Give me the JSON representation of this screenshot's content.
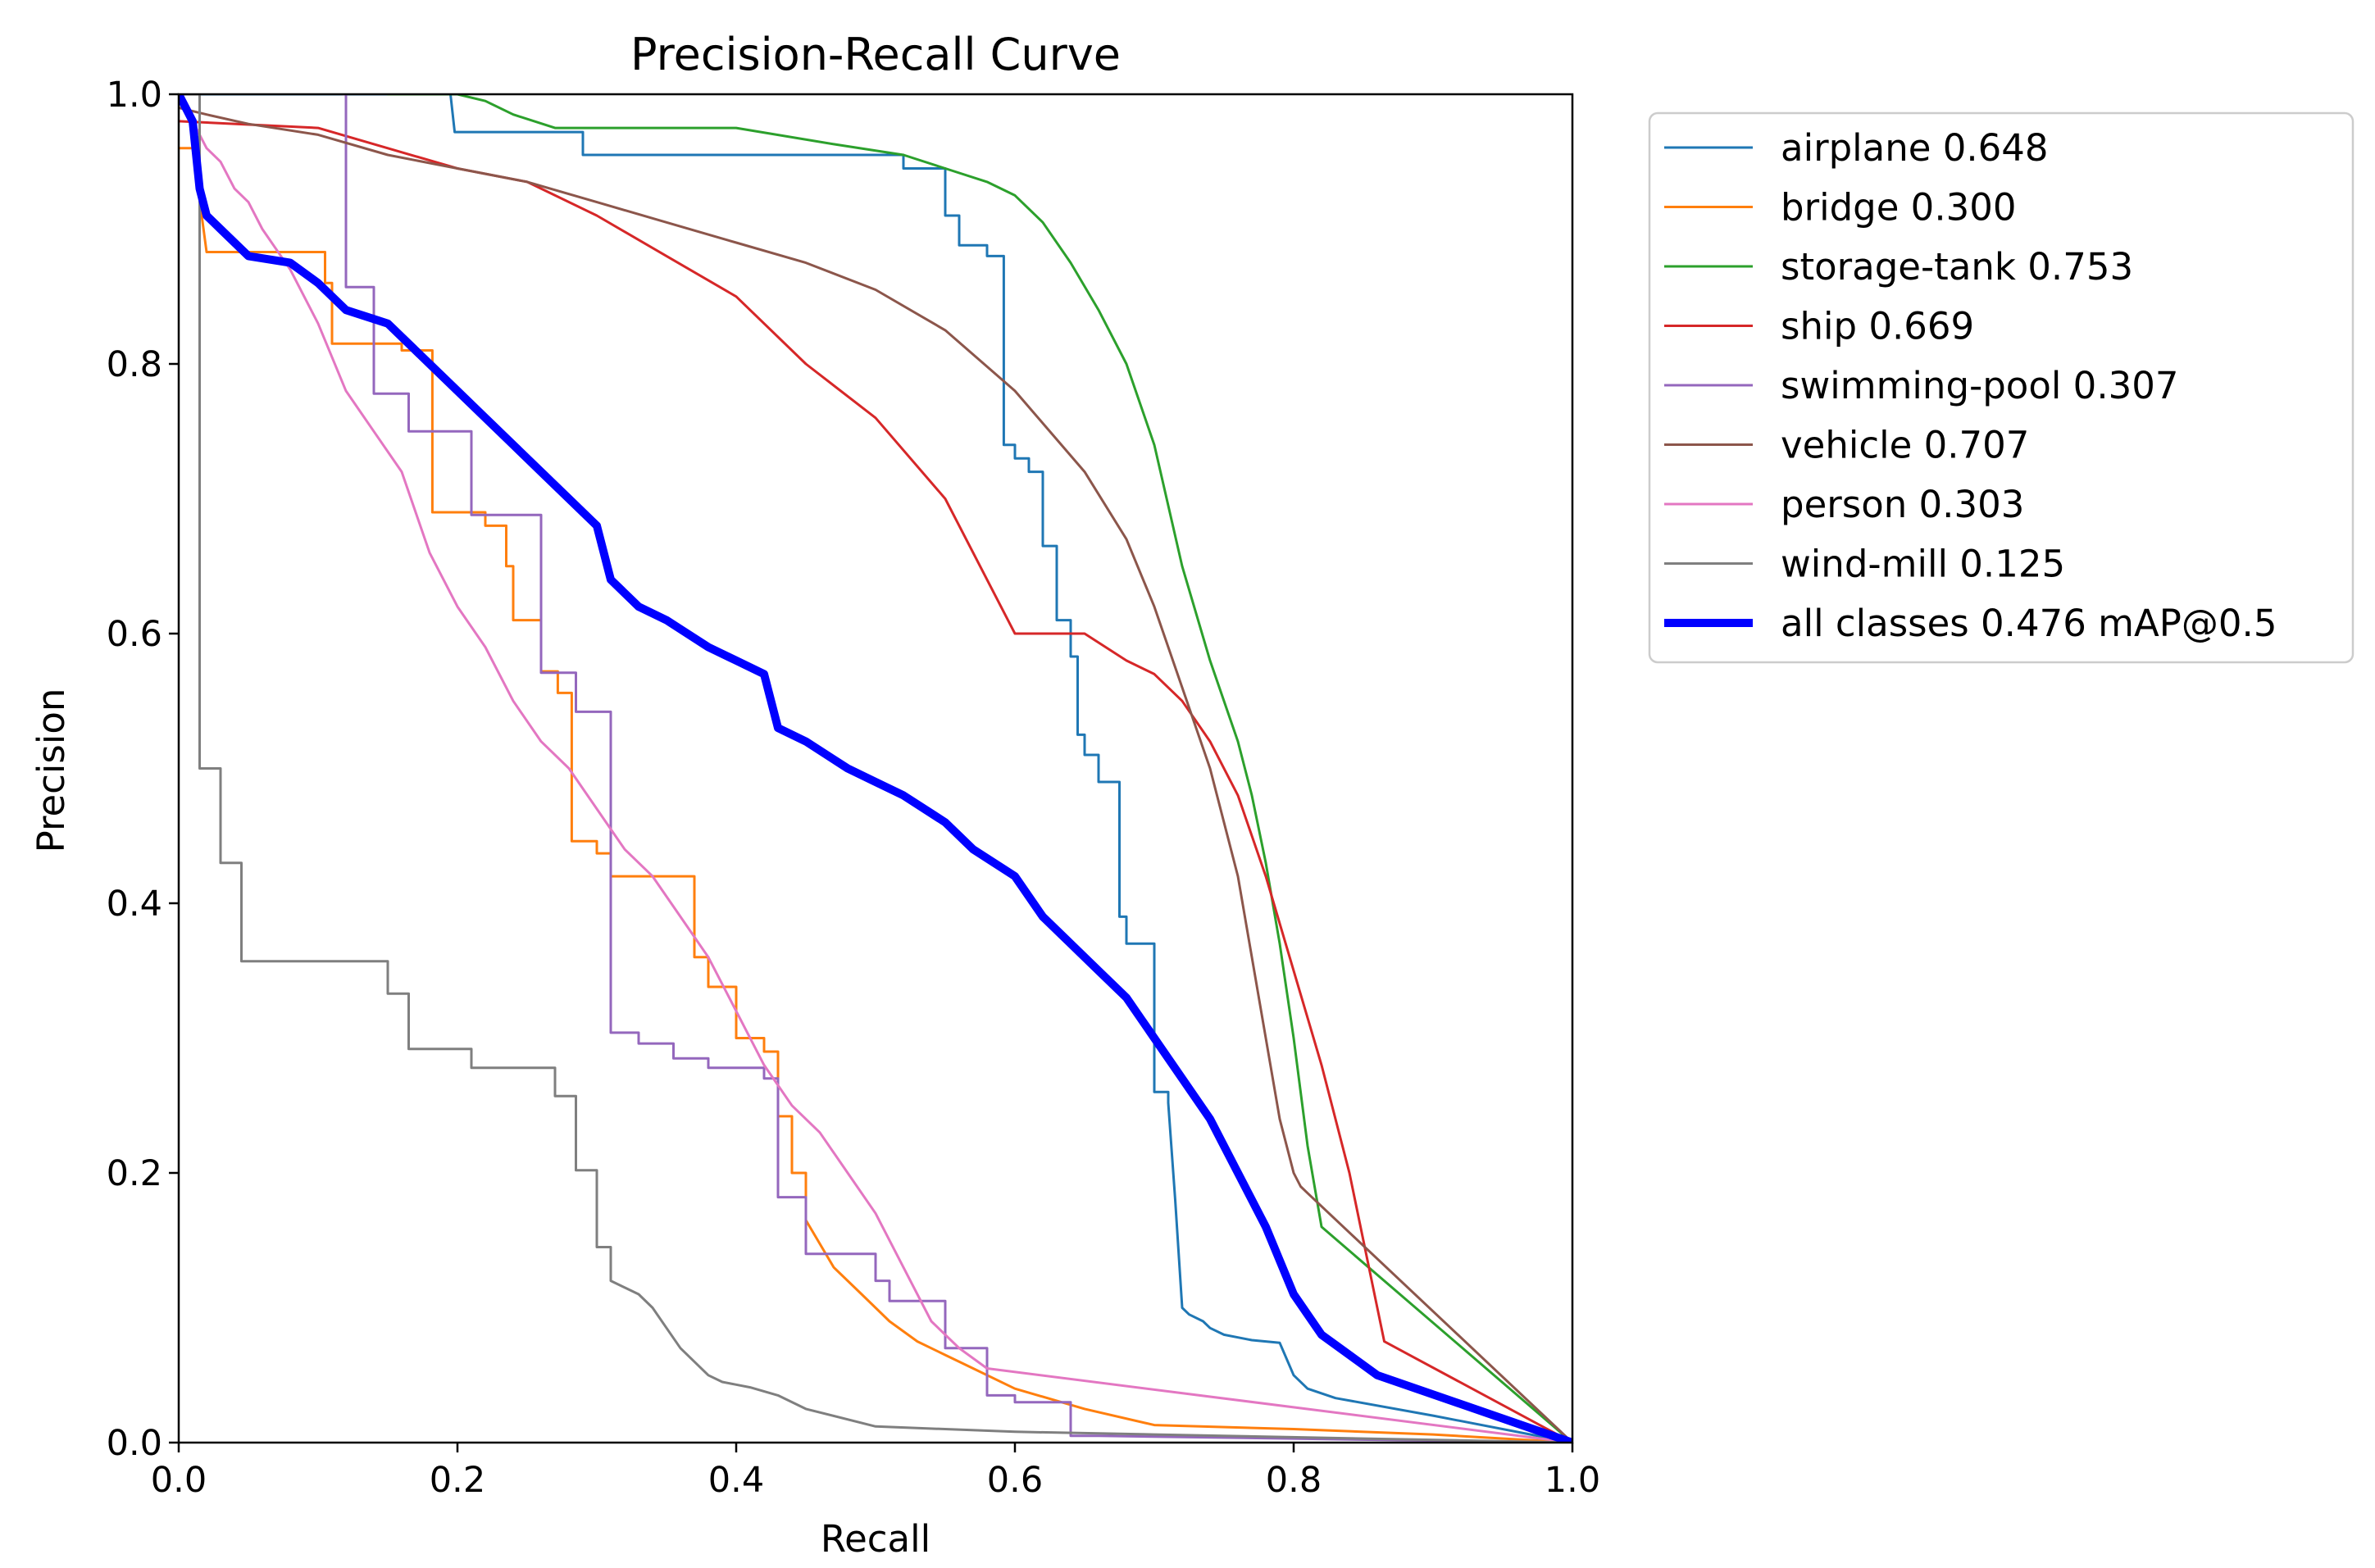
{
  "chart_data": {
    "type": "line",
    "title": "Precision-Recall Curve",
    "xlabel": "Recall",
    "ylabel": "Precision",
    "xlim": [
      0.0,
      1.0
    ],
    "ylim": [
      0.0,
      1.0
    ],
    "grid": false,
    "legend_position": "outside-upper-right",
    "x_ticks": [
      "0.0",
      "0.2",
      "0.4",
      "0.6",
      "0.8",
      "1.0"
    ],
    "y_ticks": [
      "0.0",
      "0.2",
      "0.4",
      "0.6",
      "0.8",
      "1.0"
    ],
    "series": [
      {
        "name": "airplane",
        "label": "airplane 0.648",
        "color": "#1f77b4",
        "width": 3,
        "x": [
          0.0,
          0.13,
          0.195,
          0.198,
          0.29,
          0.29,
          0.52,
          0.52,
          0.55,
          0.55,
          0.56,
          0.56,
          0.58,
          0.58,
          0.592,
          0.592,
          0.6,
          0.6,
          0.61,
          0.61,
          0.62,
          0.62,
          0.63,
          0.63,
          0.64,
          0.64,
          0.645,
          0.645,
          0.65,
          0.65,
          0.66,
          0.66,
          0.675,
          0.675,
          0.68,
          0.68,
          0.7,
          0.7,
          0.71,
          0.71,
          0.715,
          0.72,
          0.725,
          0.735,
          0.74,
          0.75,
          0.76,
          0.77,
          0.79,
          0.8,
          0.81,
          0.83,
          0.9,
          1.0
        ],
        "y": [
          1.0,
          1.0,
          1.0,
          0.972,
          0.972,
          0.955,
          0.955,
          0.945,
          0.945,
          0.91,
          0.91,
          0.888,
          0.888,
          0.88,
          0.88,
          0.74,
          0.74,
          0.73,
          0.73,
          0.72,
          0.72,
          0.665,
          0.665,
          0.61,
          0.61,
          0.583,
          0.583,
          0.525,
          0.525,
          0.51,
          0.51,
          0.49,
          0.49,
          0.39,
          0.39,
          0.37,
          0.37,
          0.26,
          0.26,
          0.252,
          0.18,
          0.1,
          0.095,
          0.09,
          0.085,
          0.08,
          0.078,
          0.076,
          0.074,
          0.05,
          0.04,
          0.033,
          0.02,
          0.0
        ]
      },
      {
        "name": "bridge",
        "label": "bridge 0.300",
        "color": "#ff7f0e",
        "width": 3,
        "x": [
          0.0,
          0.01,
          0.02,
          0.02,
          0.105,
          0.105,
          0.11,
          0.11,
          0.16,
          0.16,
          0.182,
          0.182,
          0.22,
          0.22,
          0.235,
          0.235,
          0.24,
          0.24,
          0.26,
          0.26,
          0.272,
          0.272,
          0.282,
          0.282,
          0.3,
          0.3,
          0.31,
          0.31,
          0.37,
          0.37,
          0.38,
          0.38,
          0.4,
          0.4,
          0.42,
          0.42,
          0.43,
          0.43,
          0.44,
          0.44,
          0.45,
          0.45,
          0.47,
          0.49,
          0.51,
          0.53,
          0.55,
          0.57,
          0.6,
          0.65,
          0.7,
          0.8,
          0.9,
          1.0
        ],
        "y": [
          0.96,
          0.96,
          0.883,
          0.883,
          0.883,
          0.86,
          0.86,
          0.815,
          0.815,
          0.81,
          0.81,
          0.69,
          0.69,
          0.68,
          0.68,
          0.65,
          0.65,
          0.61,
          0.61,
          0.572,
          0.572,
          0.556,
          0.556,
          0.446,
          0.446,
          0.437,
          0.437,
          0.42,
          0.42,
          0.36,
          0.36,
          0.338,
          0.338,
          0.3,
          0.3,
          0.29,
          0.29,
          0.242,
          0.242,
          0.2,
          0.2,
          0.165,
          0.13,
          0.11,
          0.09,
          0.075,
          0.065,
          0.055,
          0.04,
          0.025,
          0.013,
          0.01,
          0.006,
          0.0
        ]
      },
      {
        "name": "storage-tank",
        "label": "storage-tank 0.753",
        "color": "#2ca02c",
        "width": 3,
        "x": [
          0.15,
          0.2,
          0.22,
          0.24,
          0.27,
          0.3,
          0.4,
          0.47,
          0.52,
          0.55,
          0.58,
          0.6,
          0.62,
          0.64,
          0.66,
          0.68,
          0.7,
          0.72,
          0.74,
          0.76,
          0.77,
          0.78,
          0.79,
          0.8,
          0.805,
          0.81,
          0.815,
          0.82,
          0.82,
          1.0
        ],
        "y": [
          1.0,
          1.0,
          0.995,
          0.985,
          0.975,
          0.975,
          0.975,
          0.963,
          0.955,
          0.945,
          0.935,
          0.925,
          0.905,
          0.875,
          0.84,
          0.8,
          0.74,
          0.65,
          0.58,
          0.52,
          0.48,
          0.43,
          0.37,
          0.3,
          0.26,
          0.22,
          0.19,
          0.16,
          0.16,
          0.0
        ]
      },
      {
        "name": "ship",
        "label": "ship 0.669",
        "color": "#d62728",
        "width": 3,
        "x": [
          0.0,
          0.1,
          0.15,
          0.2,
          0.25,
          0.3,
          0.35,
          0.4,
          0.45,
          0.5,
          0.55,
          0.6,
          0.65,
          0.68,
          0.7,
          0.72,
          0.74,
          0.76,
          0.78,
          0.8,
          0.82,
          0.84,
          0.85,
          0.86,
          0.865,
          1.0
        ],
        "y": [
          0.98,
          0.975,
          0.96,
          0.945,
          0.935,
          0.91,
          0.88,
          0.85,
          0.8,
          0.76,
          0.7,
          0.6,
          0.6,
          0.58,
          0.57,
          0.55,
          0.52,
          0.48,
          0.42,
          0.35,
          0.28,
          0.2,
          0.15,
          0.1,
          0.075,
          0.0
        ]
      },
      {
        "name": "swimming-pool",
        "label": "swimming-pool 0.307",
        "color": "#9467bd",
        "width": 3,
        "x": [
          0.118,
          0.118,
          0.12,
          0.12,
          0.14,
          0.14,
          0.165,
          0.165,
          0.21,
          0.21,
          0.26,
          0.26,
          0.285,
          0.285,
          0.31,
          0.31,
          0.33,
          0.33,
          0.355,
          0.355,
          0.38,
          0.38,
          0.42,
          0.42,
          0.43,
          0.43,
          0.45,
          0.45,
          0.5,
          0.5,
          0.51,
          0.51,
          0.55,
          0.55,
          0.58,
          0.58,
          0.6,
          0.6,
          0.64,
          0.64,
          0.66,
          1.0
        ],
        "y": [
          1.0,
          1.0,
          1.0,
          0.857,
          0.857,
          0.778,
          0.778,
          0.75,
          0.75,
          0.688,
          0.688,
          0.571,
          0.571,
          0.542,
          0.542,
          0.304,
          0.304,
          0.296,
          0.296,
          0.285,
          0.285,
          0.278,
          0.278,
          0.27,
          0.27,
          0.182,
          0.182,
          0.14,
          0.14,
          0.12,
          0.12,
          0.105,
          0.105,
          0.07,
          0.07,
          0.035,
          0.035,
          0.03,
          0.03,
          0.005,
          0.005,
          0.0
        ]
      },
      {
        "name": "vehicle",
        "label": "vehicle 0.707",
        "color": "#8c564b",
        "width": 3,
        "x": [
          0.0,
          0.02,
          0.05,
          0.1,
          0.15,
          0.2,
          0.25,
          0.3,
          0.35,
          0.4,
          0.45,
          0.5,
          0.55,
          0.6,
          0.65,
          0.68,
          0.7,
          0.72,
          0.74,
          0.76,
          0.77,
          0.78,
          0.79,
          0.8,
          0.805,
          0.81,
          1.0
        ],
        "y": [
          0.99,
          0.985,
          0.978,
          0.97,
          0.955,
          0.945,
          0.935,
          0.92,
          0.905,
          0.89,
          0.875,
          0.855,
          0.825,
          0.78,
          0.72,
          0.67,
          0.62,
          0.56,
          0.5,
          0.42,
          0.36,
          0.3,
          0.24,
          0.2,
          0.19,
          0.185,
          0.0
        ]
      },
      {
        "name": "person",
        "label": "person 0.303",
        "color": "#e377c2",
        "width": 3,
        "x": [
          0.0,
          0.01,
          0.02,
          0.03,
          0.04,
          0.05,
          0.06,
          0.08,
          0.1,
          0.12,
          0.14,
          0.16,
          0.18,
          0.2,
          0.22,
          0.24,
          0.26,
          0.28,
          0.3,
          0.32,
          0.34,
          0.36,
          0.38,
          0.4,
          0.42,
          0.44,
          0.46,
          0.48,
          0.5,
          0.52,
          0.54,
          0.56,
          0.58,
          1.0
        ],
        "y": [
          1.0,
          0.98,
          0.96,
          0.95,
          0.93,
          0.92,
          0.9,
          0.87,
          0.83,
          0.78,
          0.75,
          0.72,
          0.66,
          0.62,
          0.59,
          0.55,
          0.52,
          0.5,
          0.47,
          0.44,
          0.42,
          0.39,
          0.36,
          0.32,
          0.28,
          0.25,
          0.23,
          0.2,
          0.17,
          0.13,
          0.09,
          0.07,
          0.055,
          0.0
        ]
      },
      {
        "name": "wind-mill",
        "label": "wind-mill 0.125",
        "color": "#7f7f7f",
        "width": 3,
        "x": [
          0.0,
          0.012,
          0.015,
          0.015,
          0.03,
          0.03,
          0.045,
          0.045,
          0.07,
          0.15,
          0.15,
          0.165,
          0.165,
          0.21,
          0.21,
          0.27,
          0.27,
          0.285,
          0.285,
          0.3,
          0.3,
          0.31,
          0.31,
          0.33,
          0.34,
          0.35,
          0.36,
          0.37,
          0.38,
          0.39,
          0.4,
          0.41,
          0.43,
          0.45,
          0.5,
          0.6,
          0.7,
          1.0
        ],
        "y": [
          1.0,
          1.0,
          1.0,
          0.5,
          0.5,
          0.43,
          0.43,
          0.357,
          0.357,
          0.357,
          0.333,
          0.333,
          0.292,
          0.292,
          0.278,
          0.278,
          0.257,
          0.257,
          0.202,
          0.202,
          0.145,
          0.145,
          0.12,
          0.11,
          0.1,
          0.085,
          0.07,
          0.06,
          0.05,
          0.045,
          0.043,
          0.041,
          0.035,
          0.025,
          0.012,
          0.008,
          0.006,
          0.0
        ]
      },
      {
        "name": "all-classes",
        "label": "all classes 0.476 mAP@0.5",
        "color": "#0000ff",
        "width": 10,
        "x": [
          0.0,
          0.01,
          0.015,
          0.02,
          0.03,
          0.05,
          0.08,
          0.1,
          0.12,
          0.15,
          0.18,
          0.2,
          0.22,
          0.24,
          0.26,
          0.28,
          0.3,
          0.31,
          0.33,
          0.35,
          0.38,
          0.4,
          0.42,
          0.43,
          0.45,
          0.48,
          0.5,
          0.52,
          0.55,
          0.57,
          0.6,
          0.62,
          0.64,
          0.66,
          0.68,
          0.7,
          0.72,
          0.74,
          0.76,
          0.78,
          0.8,
          0.82,
          0.86,
          1.0
        ],
        "y": [
          1.0,
          0.98,
          0.93,
          0.91,
          0.9,
          0.88,
          0.875,
          0.86,
          0.84,
          0.83,
          0.8,
          0.78,
          0.76,
          0.74,
          0.72,
          0.7,
          0.68,
          0.64,
          0.62,
          0.61,
          0.59,
          0.58,
          0.57,
          0.53,
          0.52,
          0.5,
          0.49,
          0.48,
          0.46,
          0.44,
          0.42,
          0.39,
          0.37,
          0.35,
          0.33,
          0.3,
          0.27,
          0.24,
          0.2,
          0.16,
          0.11,
          0.08,
          0.05,
          0.0
        ]
      }
    ]
  }
}
